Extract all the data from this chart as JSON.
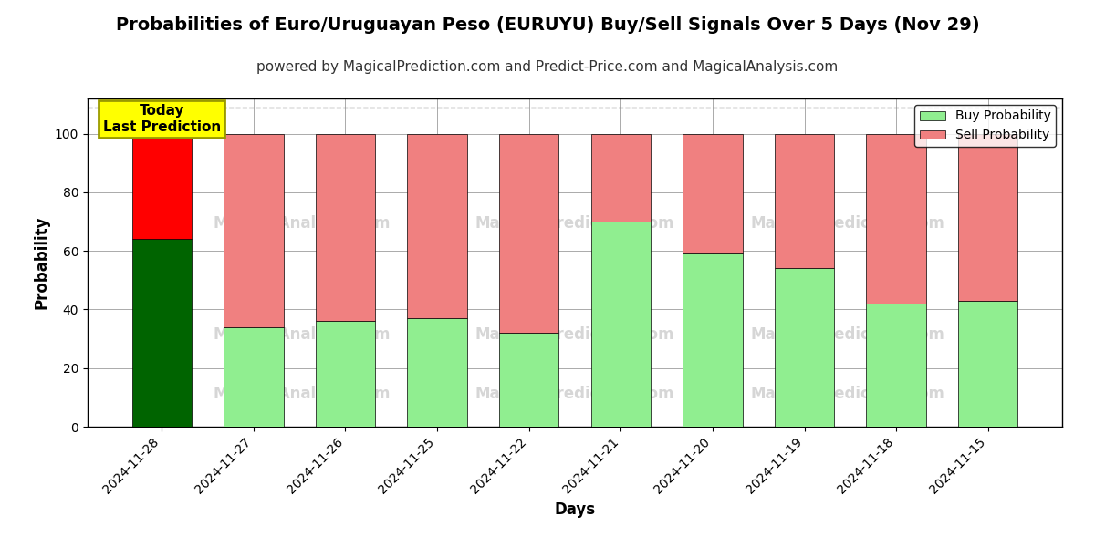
{
  "title": "Probabilities of Euro/Uruguayan Peso (EURUYU) Buy/Sell Signals Over 5 Days (Nov 29)",
  "subtitle": "powered by MagicalPrediction.com and Predict-Price.com and MagicalAnalysis.com",
  "xlabel": "Days",
  "ylabel": "Probability",
  "categories": [
    "2024-11-28",
    "2024-11-27",
    "2024-11-26",
    "2024-11-25",
    "2024-11-22",
    "2024-11-21",
    "2024-11-20",
    "2024-11-19",
    "2024-11-18",
    "2024-11-15"
  ],
  "buy_values": [
    64,
    34,
    36,
    37,
    32,
    70,
    59,
    54,
    42,
    43
  ],
  "sell_values": [
    36,
    66,
    64,
    63,
    68,
    30,
    41,
    46,
    58,
    57
  ],
  "buy_colors": [
    "#006400",
    "#90EE90",
    "#90EE90",
    "#90EE90",
    "#90EE90",
    "#90EE90",
    "#90EE90",
    "#90EE90",
    "#90EE90",
    "#90EE90"
  ],
  "sell_colors": [
    "#FF0000",
    "#F08080",
    "#F08080",
    "#F08080",
    "#F08080",
    "#F08080",
    "#F08080",
    "#F08080",
    "#F08080",
    "#F08080"
  ],
  "today_label": "Today\nLast Prediction",
  "today_bg": "#FFFF00",
  "today_border": "#CCCC00",
  "legend_buy_color": "#90EE90",
  "legend_sell_color": "#F08080",
  "legend_buy_label": "Buy Probability",
  "legend_sell_label": "Sell Probability",
  "ylim": [
    0,
    112
  ],
  "dashed_line_y": 109,
  "background_color": "#ffffff",
  "grid_color": "#aaaaaa",
  "bar_width": 0.65,
  "title_fontsize": 14,
  "subtitle_fontsize": 11,
  "axis_label_fontsize": 12
}
